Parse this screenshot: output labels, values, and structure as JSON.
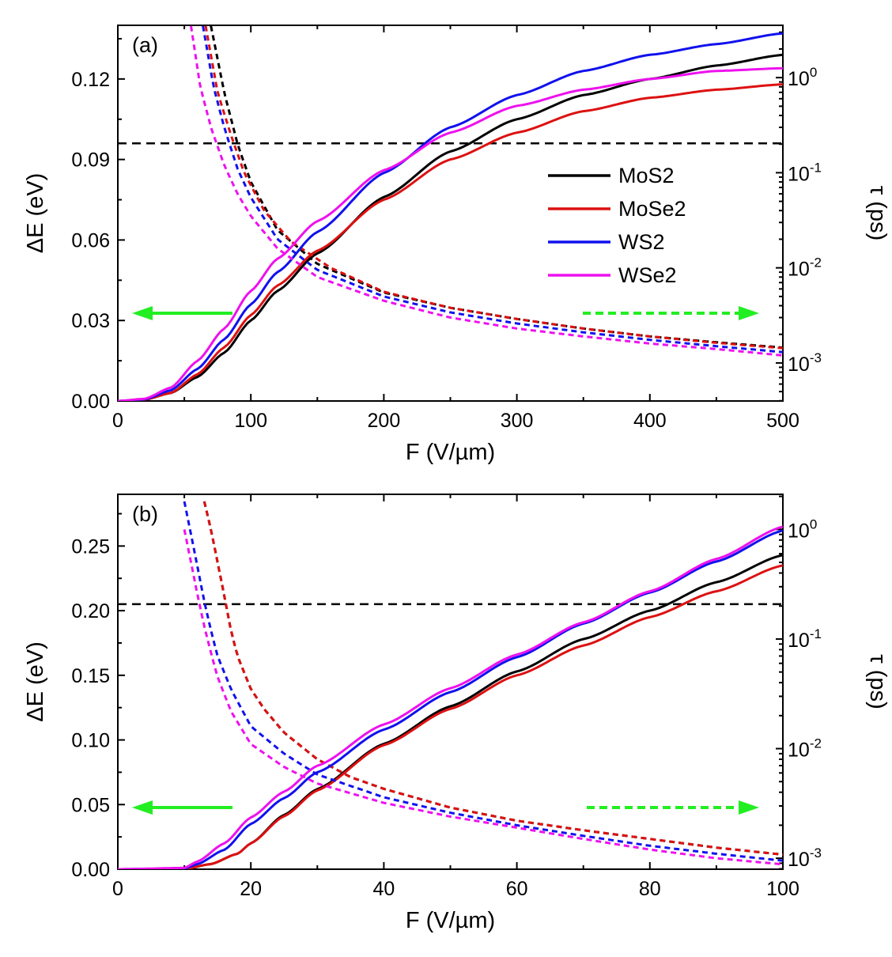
{
  "chart_data": [
    {
      "type": "line",
      "panel_label": "(a)",
      "xlabel": "F (V/µm)",
      "ylabel_left": "ΔE (eV)",
      "ylabel_right": "τ (ps)",
      "xlim": [
        0,
        500
      ],
      "ylim_left": [
        0,
        0.14
      ],
      "ylim_right_log10": [
        -3.4,
        0.55
      ],
      "x_ticks": [
        0,
        100,
        200,
        300,
        400,
        500
      ],
      "x_tick_labels": [
        "0",
        "100",
        "200",
        "300",
        "400",
        "500"
      ],
      "y_left_ticks": [
        0,
        0.03,
        0.06,
        0.09,
        0.12
      ],
      "y_left_tick_labels": [
        "0.00",
        "0.03",
        "0.06",
        "0.09",
        "0.12"
      ],
      "y_right_ticks_log10": [
        -3,
        -2,
        -1,
        0
      ],
      "y_right_tick_labels": [
        {
          "base": "10",
          "exp": "-3"
        },
        {
          "base": "10",
          "exp": "-2"
        },
        {
          "base": "10",
          "exp": "-1"
        },
        {
          "base": "10",
          "exp": "0"
        }
      ],
      "reference_line": {
        "axis": "left",
        "value": 0.096,
        "style": "dashed",
        "color": "#000000"
      },
      "legend": {
        "placement": "center-right",
        "entries": [
          "MoS2",
          "MoSe2",
          "WS2",
          "WSe2"
        ]
      },
      "arrows": [
        {
          "direction": "left",
          "style": "solid",
          "color": "#22ee22",
          "meaning": "left axis"
        },
        {
          "direction": "right",
          "style": "dashed",
          "color": "#22ee22",
          "meaning": "right axis"
        }
      ],
      "series": [
        {
          "name": "MoS2",
          "color": "#000000",
          "deltaE": {
            "x": [
              0,
              20,
              40,
              60,
              80,
              100,
              120,
              150,
              200,
              250,
              300,
              350,
              400,
              450,
              500
            ],
            "y": [
              0,
              0.0005,
              0.003,
              0.009,
              0.018,
              0.03,
              0.041,
              0.055,
              0.076,
              0.093,
              0.105,
              0.114,
              0.12,
              0.125,
              0.129
            ]
          },
          "tau_ps": {
            "x": [
              70,
              80,
              90,
              100,
              120,
              150,
              200,
              250,
              300,
              350,
              400,
              450,
              500
            ],
            "y": [
              3.5,
              0.7,
              0.2,
              0.08,
              0.025,
              0.011,
              0.0055,
              0.0038,
              0.0029,
              0.0023,
              0.0019,
              0.00165,
              0.00145
            ]
          }
        },
        {
          "name": "MoSe2",
          "color": "#dd1111",
          "deltaE": {
            "x": [
              0,
              20,
              40,
              60,
              80,
              100,
              120,
              150,
              200,
              250,
              300,
              350,
              400,
              450,
              500
            ],
            "y": [
              0,
              0.0005,
              0.003,
              0.01,
              0.02,
              0.032,
              0.043,
              0.056,
              0.075,
              0.09,
              0.1,
              0.108,
              0.113,
              0.116,
              0.118
            ]
          },
          "tau_ps": {
            "x": [
              66,
              75,
              85,
              95,
              110,
              130,
              160,
              200,
              250,
              300,
              350,
              400,
              450,
              500
            ],
            "y": [
              3.5,
              0.7,
              0.25,
              0.1,
              0.04,
              0.019,
              0.01,
              0.0056,
              0.0038,
              0.0029,
              0.0023,
              0.0019,
              0.00163,
              0.00143
            ]
          }
        },
        {
          "name": "WS2",
          "color": "#1111ee",
          "deltaE": {
            "x": [
              0,
              20,
              40,
              60,
              80,
              100,
              120,
              150,
              200,
              250,
              300,
              350,
              400,
              450,
              500
            ],
            "y": [
              0,
              0.0006,
              0.004,
              0.012,
              0.023,
              0.036,
              0.048,
              0.063,
              0.085,
              0.102,
              0.114,
              0.123,
              0.129,
              0.133,
              0.137
            ]
          },
          "tau_ps": {
            "x": [
              64,
              72,
              80,
              90,
              100,
              120,
              150,
              200,
              250,
              300,
              350,
              400,
              450,
              500
            ],
            "y": [
              3.5,
              0.8,
              0.3,
              0.11,
              0.055,
              0.02,
              0.0095,
              0.005,
              0.0034,
              0.0026,
              0.0021,
              0.00175,
              0.0015,
              0.0013
            ]
          }
        },
        {
          "name": "WSe2",
          "color": "#ee11ee",
          "deltaE": {
            "x": [
              0,
              20,
              40,
              60,
              80,
              100,
              120,
              150,
              200,
              250,
              300,
              350,
              400,
              450,
              500
            ],
            "y": [
              0,
              0.0008,
              0.005,
              0.015,
              0.027,
              0.041,
              0.053,
              0.067,
              0.086,
              0.1,
              0.11,
              0.116,
              0.12,
              0.123,
              0.124
            ]
          },
          "tau_ps": {
            "x": [
              55,
              62,
              70,
              80,
              90,
              100,
              120,
              150,
              200,
              250,
              300,
              350,
              400,
              450,
              500
            ],
            "y": [
              3.5,
              0.8,
              0.3,
              0.12,
              0.06,
              0.035,
              0.016,
              0.008,
              0.0045,
              0.003,
              0.0023,
              0.0019,
              0.0016,
              0.0014,
              0.0012
            ]
          }
        }
      ]
    },
    {
      "type": "line",
      "panel_label": "(b)",
      "xlabel": "F (V/µm)",
      "ylabel_left": "ΔE (eV)",
      "ylabel_right": "τ (ps)",
      "xlim": [
        0,
        100
      ],
      "ylim_left": [
        0,
        0.29
      ],
      "ylim_right_log10": [
        -3.1,
        0.32
      ],
      "x_ticks": [
        0,
        20,
        40,
        60,
        80,
        100
      ],
      "x_tick_labels": [
        "0",
        "20",
        "40",
        "60",
        "80",
        "100"
      ],
      "y_left_ticks": [
        0,
        0.05,
        0.1,
        0.15,
        0.2,
        0.25
      ],
      "y_left_tick_labels": [
        "0.00",
        "0.05",
        "0.10",
        "0.15",
        "0.20",
        "0.25"
      ],
      "y_right_ticks_log10": [
        -3,
        -2,
        -1,
        0
      ],
      "y_right_tick_labels": [
        {
          "base": "10",
          "exp": "-3"
        },
        {
          "base": "10",
          "exp": "-2"
        },
        {
          "base": "10",
          "exp": "-1"
        },
        {
          "base": "10",
          "exp": "0"
        }
      ],
      "reference_line": {
        "axis": "left",
        "value": 0.205,
        "style": "dashed",
        "color": "#000000"
      },
      "arrows": [
        {
          "direction": "left",
          "style": "solid",
          "color": "#22ee22",
          "meaning": "left axis"
        },
        {
          "direction": "right",
          "style": "dashed",
          "color": "#22ee22",
          "meaning": "right axis"
        }
      ],
      "series": [
        {
          "name": "MoS2",
          "color": "#000000",
          "deltaE": {
            "x": [
              0,
              10,
              14,
              18,
              20,
              25,
              30,
              40,
              50,
              60,
              70,
              80,
              90,
              100
            ],
            "y": [
              0,
              0.0002,
              0.004,
              0.012,
              0.02,
              0.042,
              0.062,
              0.097,
              0.126,
              0.153,
              0.178,
              0.2,
              0.222,
              0.243
            ]
          },
          "tau_ps": {
            "x": [
              13,
              14,
              15,
              16,
              17,
              18,
              20,
              22,
              25,
              30,
              35,
              40,
              50,
              60,
              70,
              80,
              90,
              100
            ],
            "y": [
              1.8,
              1.0,
              0.5,
              0.25,
              0.12,
              0.07,
              0.035,
              0.023,
              0.014,
              0.008,
              0.0055,
              0.0043,
              0.0029,
              0.0022,
              0.0018,
              0.0015,
              0.00125,
              0.00108
            ]
          }
        },
        {
          "name": "MoSe2",
          "color": "#dd1111",
          "deltaE": {
            "x": [
              0,
              10,
              14,
              18,
              20,
              25,
              30,
              40,
              50,
              60,
              70,
              80,
              90,
              100
            ],
            "y": [
              0,
              0.0002,
              0.004,
              0.012,
              0.02,
              0.041,
              0.061,
              0.096,
              0.124,
              0.15,
              0.173,
              0.195,
              0.215,
              0.235
            ]
          },
          "tau_ps": {
            "x": [
              13,
              14,
              15,
              16,
              17,
              18,
              20,
              22,
              25,
              30,
              35,
              40,
              50,
              60,
              70,
              80,
              90,
              100
            ],
            "y": [
              1.8,
              1.0,
              0.5,
              0.25,
              0.12,
              0.07,
              0.035,
              0.023,
              0.014,
              0.008,
              0.0055,
              0.0043,
              0.0029,
              0.0022,
              0.0018,
              0.0015,
              0.00125,
              0.00108
            ]
          }
        },
        {
          "name": "WS2",
          "color": "#1111ee",
          "deltaE": {
            "x": [
              0,
              10,
              12,
              16,
              20,
              25,
              30,
              40,
              50,
              60,
              70,
              80,
              90,
              100
            ],
            "y": [
              0,
              0.0005,
              0.004,
              0.015,
              0.035,
              0.055,
              0.075,
              0.108,
              0.137,
              0.164,
              0.19,
              0.214,
              0.238,
              0.262
            ]
          },
          "tau_ps": {
            "x": [
              10,
              11,
              12,
              13,
              14,
              15,
              17,
              20,
              25,
              30,
              40,
              50,
              60,
              70,
              80,
              90,
              100
            ],
            "y": [
              1.8,
              0.9,
              0.45,
              0.22,
              0.12,
              0.07,
              0.035,
              0.016,
              0.009,
              0.0058,
              0.0036,
              0.0026,
              0.002,
              0.0016,
              0.0013,
              0.0011,
              0.00095
            ]
          }
        },
        {
          "name": "WSe2",
          "color": "#ee11ee",
          "deltaE": {
            "x": [
              0,
              10,
              12,
              16,
              20,
              25,
              30,
              40,
              50,
              60,
              70,
              80,
              90,
              100
            ],
            "y": [
              0,
              0.001,
              0.006,
              0.02,
              0.04,
              0.06,
              0.08,
              0.112,
              0.14,
              0.166,
              0.191,
              0.215,
              0.24,
              0.265
            ]
          },
          "tau_ps": {
            "x": [
              10,
              11,
              12,
              13,
              14,
              15,
              17,
              20,
              25,
              30,
              40,
              50,
              60,
              70,
              80,
              90,
              100
            ],
            "y": [
              1.0,
              0.5,
              0.25,
              0.13,
              0.075,
              0.045,
              0.022,
              0.011,
              0.0068,
              0.0048,
              0.0032,
              0.0024,
              0.0019,
              0.0015,
              0.0012,
              0.001,
              0.00088
            ]
          }
        }
      ]
    }
  ]
}
